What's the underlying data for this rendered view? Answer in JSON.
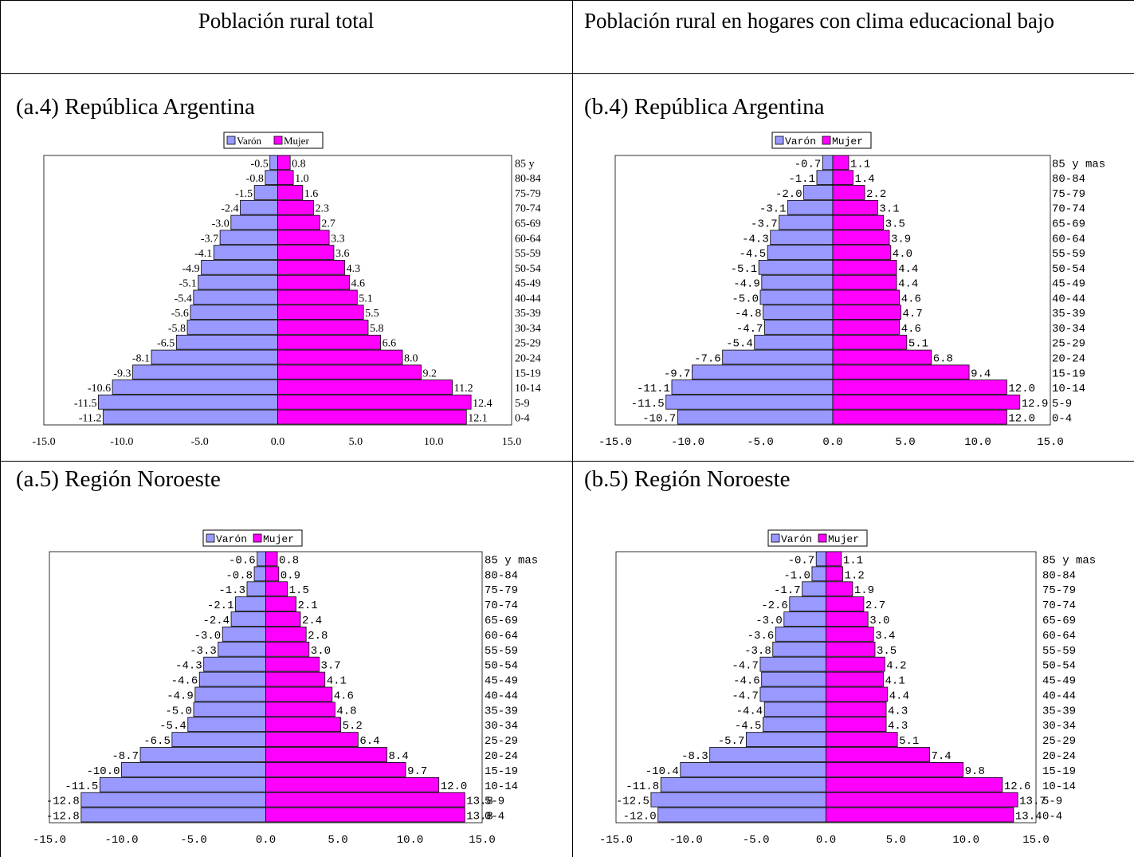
{
  "headers": {
    "left": "Población rural total",
    "right": "Población rural en hogares con clima educacional bajo"
  },
  "colors": {
    "male": "#9999ff",
    "female": "#ff00ff",
    "border": "#000000"
  },
  "legend": {
    "male": "Varón",
    "female": "Mujer"
  },
  "chart_data": [
    {
      "type": "bar",
      "title": "(a.4) República Argentina",
      "orientation": "horizontal-population-pyramid",
      "categories": [
        "85 y",
        "80-84",
        "75-79",
        "70-74",
        "65-69",
        "60-64",
        "55-59",
        "50-54",
        "45-49",
        "40-44",
        "35-39",
        "30-34",
        "25-29",
        "20-24",
        "15-19",
        "10-14",
        "5-9",
        "0-4"
      ],
      "series": [
        {
          "name": "Varón",
          "values": [
            -0.5,
            -0.8,
            -1.5,
            -2.4,
            -3.0,
            -3.7,
            -4.1,
            -4.9,
            -5.1,
            -5.4,
            -5.6,
            -5.8,
            -6.5,
            -8.1,
            -9.3,
            -10.6,
            -11.5,
            -11.2
          ]
        },
        {
          "name": "Mujer",
          "values": [
            0.8,
            1.0,
            1.6,
            2.3,
            2.7,
            3.3,
            3.6,
            4.3,
            4.6,
            5.1,
            5.5,
            5.8,
            6.6,
            8.0,
            9.2,
            11.2,
            12.4,
            12.1
          ]
        }
      ],
      "x_ticks": [
        "-15.0",
        "-10.0",
        "-5.0",
        "0.0",
        "5.0",
        "10.0",
        "15.0"
      ],
      "xlim": [
        -15,
        15
      ],
      "legend_position": "top",
      "font": "serif"
    },
    {
      "type": "bar",
      "title": "(b.4) República Argentina",
      "orientation": "horizontal-population-pyramid",
      "categories": [
        "85 y mas",
        "80-84",
        "75-79",
        "70-74",
        "65-69",
        "60-64",
        "55-59",
        "50-54",
        "45-49",
        "40-44",
        "35-39",
        "30-34",
        "25-29",
        "20-24",
        "15-19",
        "10-14",
        "5-9",
        "0-4"
      ],
      "series": [
        {
          "name": "Varón",
          "values": [
            -0.7,
            -1.1,
            -2.0,
            -3.1,
            -3.7,
            -4.3,
            -4.5,
            -5.1,
            -4.9,
            -5.0,
            -4.8,
            -4.7,
            -5.4,
            -7.6,
            -9.7,
            -11.1,
            -11.5,
            -10.7
          ]
        },
        {
          "name": "Mujer",
          "values": [
            1.1,
            1.4,
            2.2,
            3.1,
            3.5,
            3.9,
            4.0,
            4.4,
            4.4,
            4.6,
            4.7,
            4.6,
            5.1,
            6.8,
            9.4,
            12.0,
            12.9,
            12.0
          ]
        }
      ],
      "x_ticks": [
        "-15.0",
        "-10.0",
        "-5.0",
        "0.0",
        "5.0",
        "10.0",
        "15.0"
      ],
      "xlim": [
        -15,
        15
      ],
      "legend_position": "top",
      "font": "mono"
    },
    {
      "type": "bar",
      "title": "(a.5) Región Noroeste",
      "orientation": "horizontal-population-pyramid",
      "categories": [
        "85 y mas",
        "80-84",
        "75-79",
        "70-74",
        "65-69",
        "60-64",
        "55-59",
        "50-54",
        "45-49",
        "40-44",
        "35-39",
        "30-34",
        "25-29",
        "20-24",
        "15-19",
        "10-14",
        "5-9",
        "0-4"
      ],
      "series": [
        {
          "name": "Varón",
          "values": [
            -0.6,
            -0.8,
            -1.3,
            -2.1,
            -2.4,
            -3.0,
            -3.3,
            -4.3,
            -4.6,
            -4.9,
            -5.0,
            -5.4,
            -6.5,
            -8.7,
            -10.0,
            -11.5,
            -12.8,
            -12.8
          ]
        },
        {
          "name": "Mujer",
          "values": [
            0.8,
            0.9,
            1.5,
            2.1,
            2.4,
            2.8,
            3.0,
            3.7,
            4.1,
            4.6,
            4.8,
            5.2,
            6.4,
            8.4,
            9.7,
            12.0,
            13.8,
            13.8
          ]
        }
      ],
      "x_ticks": [
        "-15.0",
        "-10.0",
        "-5.0",
        "0.0",
        "5.0",
        "10.0",
        "15.0"
      ],
      "xlim": [
        -15,
        15
      ],
      "legend_position": "top",
      "font": "mono"
    },
    {
      "type": "bar",
      "title": "(b.5) Región Noroeste",
      "orientation": "horizontal-population-pyramid",
      "categories": [
        "85 y mas",
        "80-84",
        "75-79",
        "70-74",
        "65-69",
        "60-64",
        "55-59",
        "50-54",
        "45-49",
        "40-44",
        "35-39",
        "30-34",
        "25-29",
        "20-24",
        "15-19",
        "10-14",
        "5-9",
        "0-4"
      ],
      "series": [
        {
          "name": "Varón",
          "values": [
            -0.7,
            -1.0,
            -1.7,
            -2.6,
            -3.0,
            -3.6,
            -3.8,
            -4.7,
            -4.6,
            -4.7,
            -4.4,
            -4.5,
            -5.7,
            -8.3,
            -10.4,
            -11.8,
            -12.5,
            -12.0
          ]
        },
        {
          "name": "Mujer",
          "values": [
            1.1,
            1.2,
            1.9,
            2.7,
            3.0,
            3.4,
            3.5,
            4.2,
            4.1,
            4.4,
            4.3,
            4.3,
            5.1,
            7.4,
            9.8,
            12.6,
            13.7,
            13.4
          ]
        }
      ],
      "x_ticks": [
        "-15.0",
        "-10.0",
        "-5.0",
        "0.0",
        "5.0",
        "10.0",
        "15.0"
      ],
      "xlim": [
        -15,
        15
      ],
      "legend_position": "top",
      "font": "mono"
    }
  ]
}
